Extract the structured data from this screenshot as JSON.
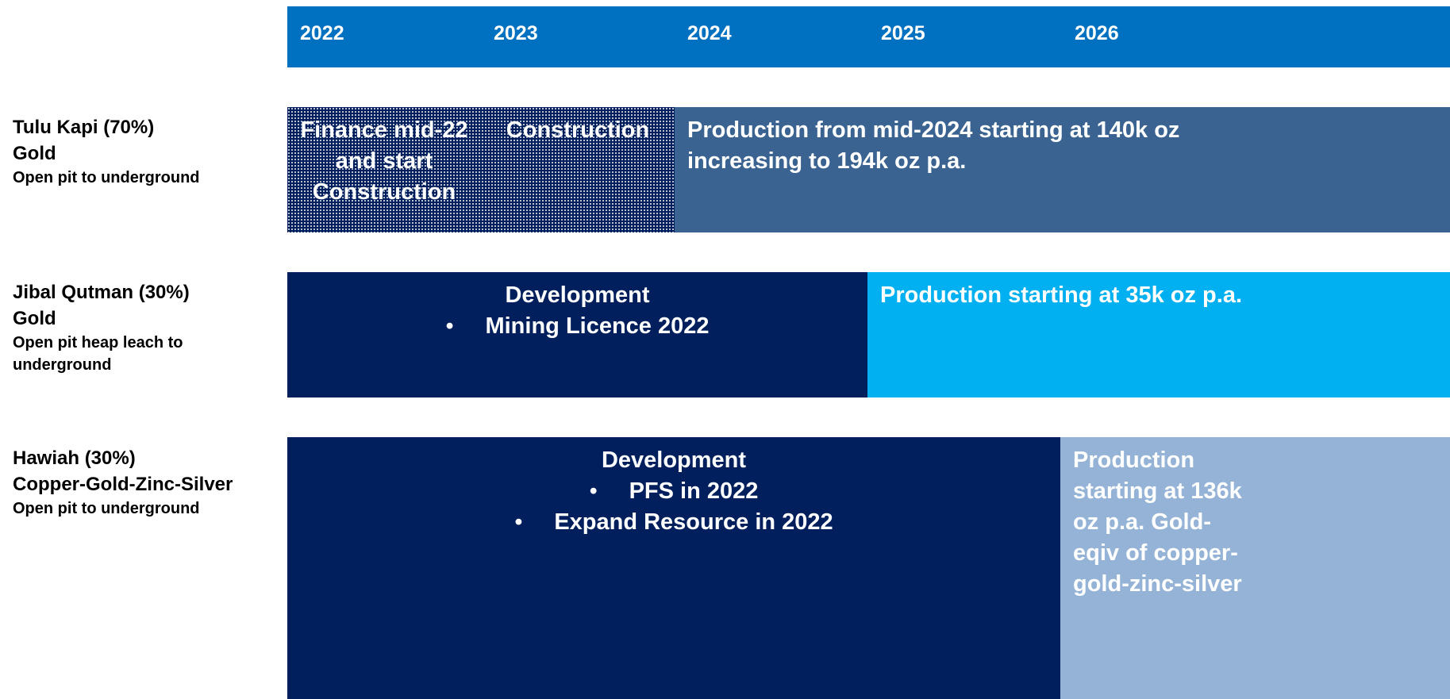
{
  "header": {
    "years": [
      "2022",
      "2023",
      "2024",
      "2025",
      "2026"
    ]
  },
  "rows": [
    {
      "name": "Tulu Kapi (70%)",
      "commodity": "Gold",
      "method": "Open pit to underground",
      "segments": [
        {
          "lines": [
            "Finance mid-22",
            "and start",
            "Construction"
          ]
        },
        {
          "lines": [
            "Construction"
          ]
        },
        {
          "lines": [
            "Production from mid-2024 starting at 140k oz",
            "increasing to 194k oz p.a."
          ]
        }
      ]
    },
    {
      "name": "Jibal Qutman (30%)",
      "commodity": "Gold",
      "method": "Open pit heap leach to underground",
      "segments": [
        {
          "title": "Development",
          "bullets": [
            "Mining Licence 2022"
          ]
        },
        {
          "lines": [
            "Production starting at 35k oz p.a."
          ]
        }
      ]
    },
    {
      "name": "Hawiah (30%)",
      "commodity": "Copper-Gold-Zinc-Silver",
      "method": "Open pit to underground",
      "segments": [
        {
          "title": "Development",
          "bullets": [
            "PFS in 2022",
            "Expand Resource in 2022"
          ]
        },
        {
          "lines": [
            "Production",
            "starting at 136k",
            "oz p.a.  Gold-",
            "eqiv of copper-",
            "gold-zinc-silver"
          ]
        }
      ]
    }
  ]
}
